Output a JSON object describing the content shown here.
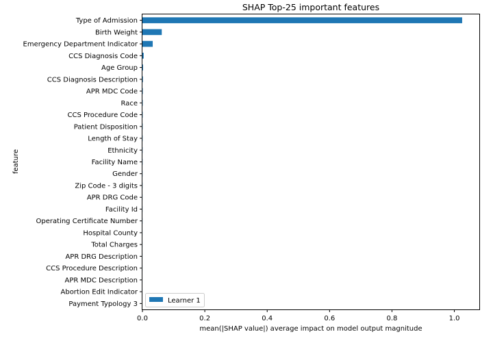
{
  "chart_data": {
    "type": "bar",
    "orientation": "horizontal",
    "title": "SHAP Top-25 important features",
    "xlabel": "mean(|SHAP value|) average impact on model output magnitude",
    "ylabel": "feature",
    "xlim": [
      0,
      1.08
    ],
    "xticks": [
      "0.0",
      "0.2",
      "0.4",
      "0.6",
      "0.8",
      "1.0"
    ],
    "xtick_values": [
      0,
      0.2,
      0.4,
      0.6,
      0.8,
      1.0
    ],
    "grid": false,
    "legend": {
      "position": "lower-left",
      "entries": [
        "Learner 1"
      ]
    },
    "categories": [
      "Type of Admission",
      "Birth Weight",
      "Emergency Department Indicator",
      "CCS Diagnosis Code",
      "Age Group",
      "CCS Diagnosis Description",
      "APR MDC Code",
      "Race",
      "CCS Procedure Code",
      "Patient Disposition",
      "Length of Stay",
      "Ethnicity",
      "Facility Name",
      "Gender",
      "Zip Code - 3 digits",
      "APR DRG Code",
      "Facility Id",
      "Operating Certificate Number",
      "Hospital County",
      "Total Charges",
      "APR DRG Description",
      "CCS Procedure Description",
      "APR MDC Description",
      "Abortion Edit Indicator",
      "Payment Typology 3"
    ],
    "series": [
      {
        "name": "Learner 1",
        "color": "#1f77b4",
        "values": [
          1.025,
          0.062,
          0.033,
          0.004,
          0.002,
          0.0015,
          0.001,
          0.0008,
          0.0007,
          0.0006,
          0.0005,
          0.0004,
          0.0004,
          0.0003,
          0.0003,
          0.0002,
          0.0002,
          0.0002,
          0.0001,
          0.0001,
          0.0001,
          0.0001,
          5e-05,
          5e-05,
          3e-05
        ]
      }
    ]
  }
}
